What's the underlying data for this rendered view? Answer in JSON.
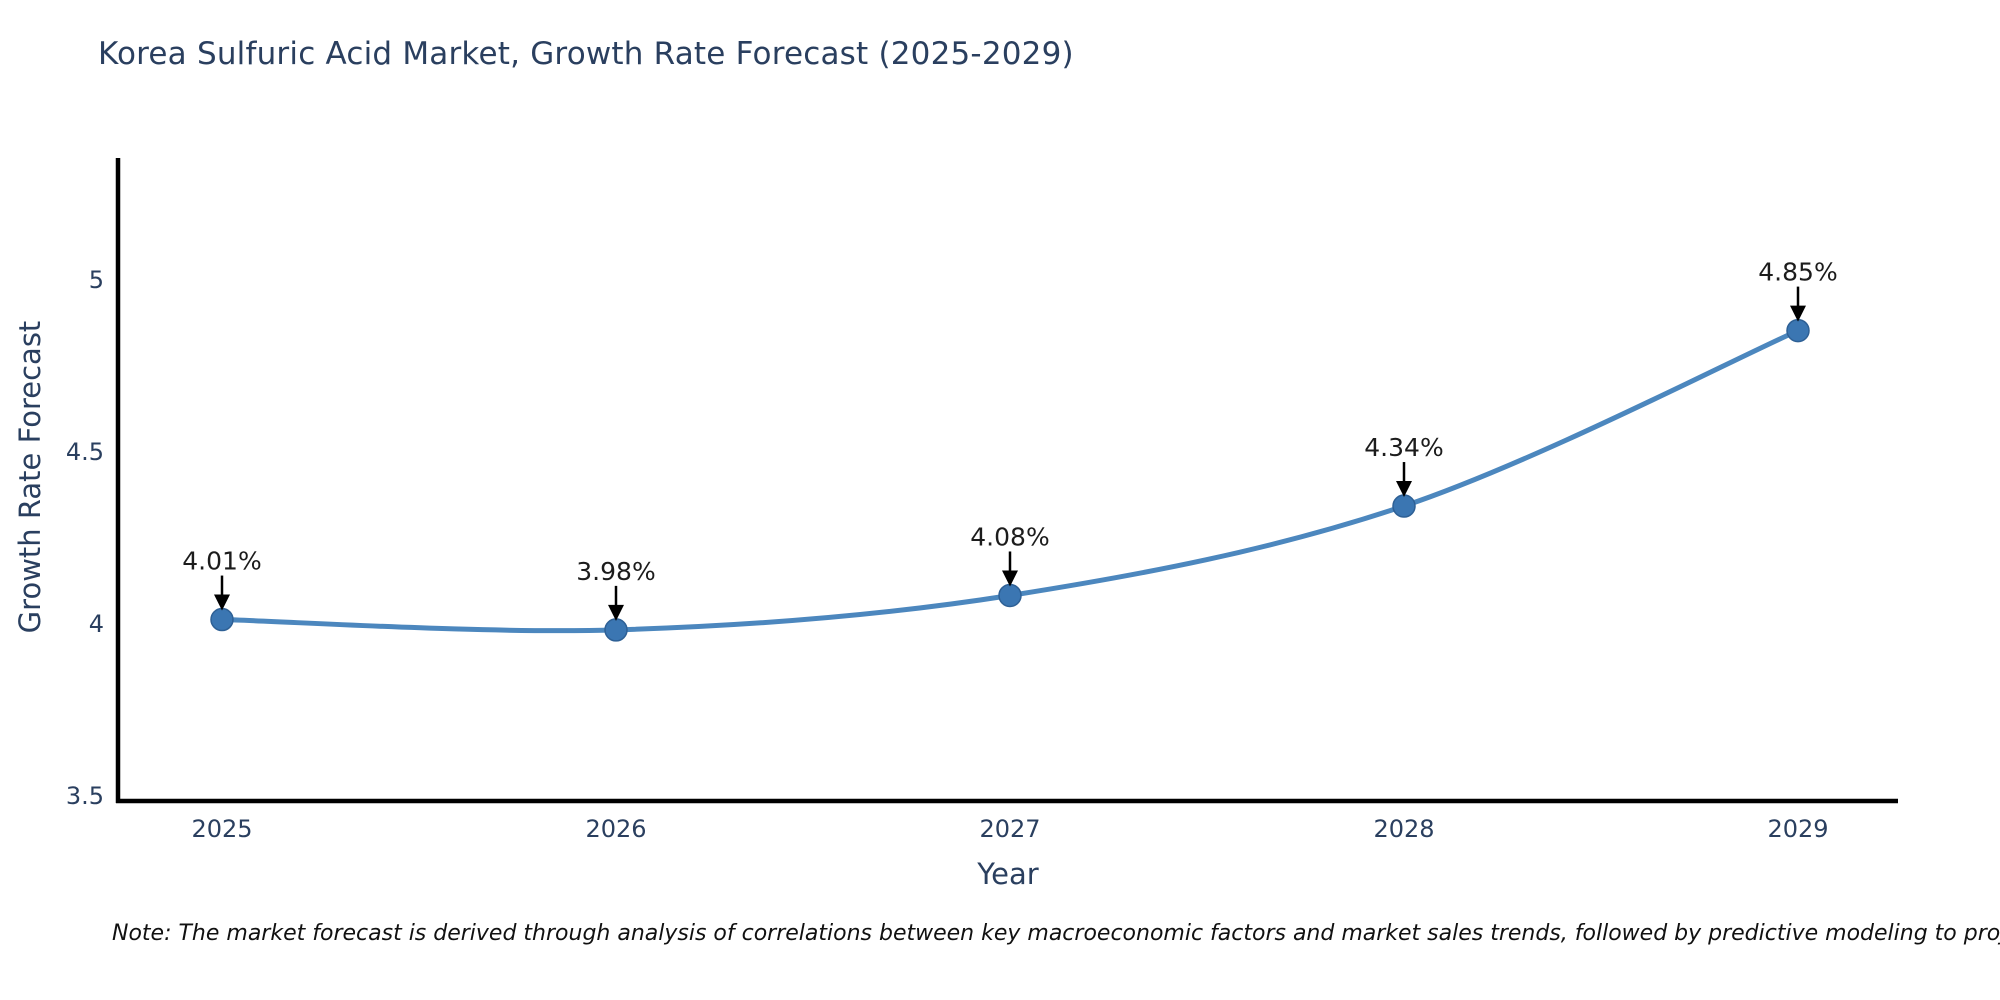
{
  "title": "Korea Sulfuric Acid Market, Growth Rate Forecast (2025-2029)",
  "note": "Note: The market forecast is derived through analysis of correlations between key macroeconomic factors and market sales trends, followed by predictive modeling to project future sales",
  "colors": {
    "line": "#4C87BE",
    "marker_fill": "#3B76B2",
    "marker_edge": "#2E6095",
    "axis_line": "#000000",
    "axis_text": "#2a3f5f",
    "annotation_text": "#1c1c1c"
  },
  "chart_data": {
    "type": "line",
    "title": "Korea Sulfuric Acid Market, Growth Rate Forecast (2025-2029)",
    "xlabel": "Year",
    "ylabel": "Growth Rate Forecast",
    "categories": [
      "2025",
      "2026",
      "2027",
      "2028",
      "2029"
    ],
    "values": [
      4.01,
      3.98,
      4.08,
      4.34,
      4.85
    ],
    "point_labels": [
      "4.01%",
      "3.98%",
      "4.08%",
      "4.34%",
      "4.85%"
    ],
    "yticks": [
      3.5,
      4,
      4.5,
      5
    ],
    "ytick_labels": [
      "3.5",
      "4",
      "4.5",
      "5"
    ],
    "ylim": [
      3.48,
      5.35
    ],
    "line_shape": "spline",
    "grid": false,
    "legend": false,
    "annotations": "value labels with down arrows above each point"
  }
}
